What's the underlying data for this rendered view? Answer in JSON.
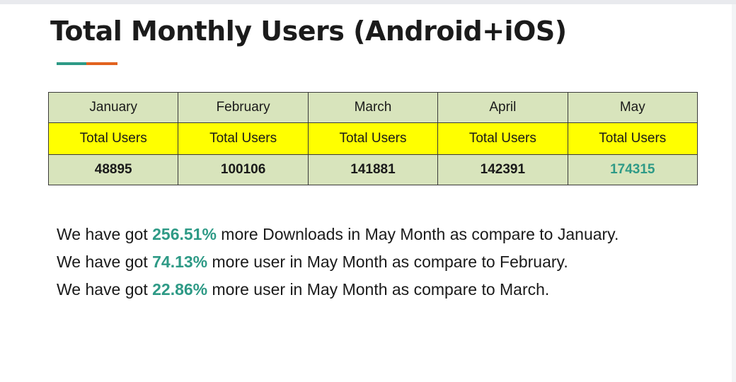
{
  "title": "Total Monthly Users (Android+iOS)",
  "colors": {
    "accent_teal": "#2e9a86",
    "accent_orange": "#e2621f",
    "header_green": "#d8e4bc",
    "label_yellow": "#ffff00",
    "highlight_teal": "#2e9a86"
  },
  "table": {
    "months": [
      "January",
      "February",
      "March",
      "April",
      "May"
    ],
    "row_label": "Total Users",
    "values": [
      "48895",
      "100106",
      "141881",
      "142391",
      "174315"
    ]
  },
  "summary": [
    {
      "prefix": "We have got ",
      "percent": "256.51%",
      "suffix": " more Downloads in May Month as compare to January."
    },
    {
      "prefix": "We have got ",
      "percent": "74.13%",
      "suffix": " more user in May Month as compare to February."
    },
    {
      "prefix": "We have got ",
      "percent": "22.86%",
      "suffix": " more user in May Month as compare to March."
    }
  ]
}
